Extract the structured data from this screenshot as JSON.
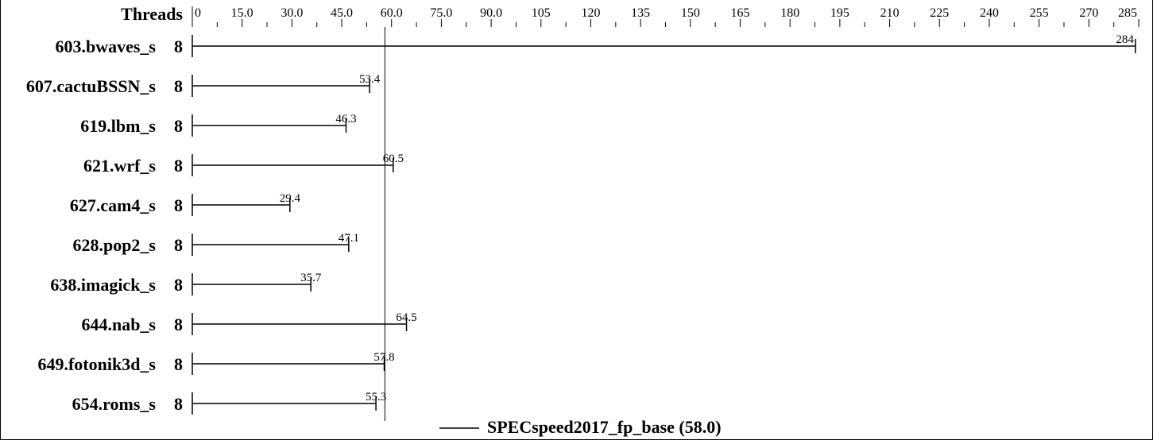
{
  "chart_data": {
    "type": "bar",
    "header_label": "Threads",
    "categories": [
      "603.bwaves_s",
      "607.cactuBSSN_s",
      "619.lbm_s",
      "621.wrf_s",
      "627.cam4_s",
      "628.pop2_s",
      "638.imagick_s",
      "644.nab_s",
      "649.fotonik3d_s",
      "654.roms_s"
    ],
    "threads": [
      "8",
      "8",
      "8",
      "8",
      "8",
      "8",
      "8",
      "8",
      "8",
      "8"
    ],
    "values": [
      284,
      53.4,
      46.3,
      60.5,
      29.4,
      47.1,
      35.7,
      64.5,
      57.8,
      55.3
    ],
    "value_labels": [
      "284",
      "53.4",
      "46.3",
      "60.5",
      "29.4",
      "47.1",
      "35.7",
      "64.5",
      "57.8",
      "55.3"
    ],
    "xlim": [
      0,
      285
    ],
    "x_ticks": [
      "0",
      "15.0",
      "30.0",
      "45.0",
      "60.0",
      "75.0",
      "90.0",
      "105",
      "120",
      "135",
      "150",
      "165",
      "180",
      "195",
      "210",
      "225",
      "240",
      "255",
      "270",
      "285"
    ],
    "reference_line": {
      "name": "SPECspeed2017_fp_base (58.0)",
      "value": 58.0
    },
    "legend_position": "bottom-center",
    "grid": false
  }
}
